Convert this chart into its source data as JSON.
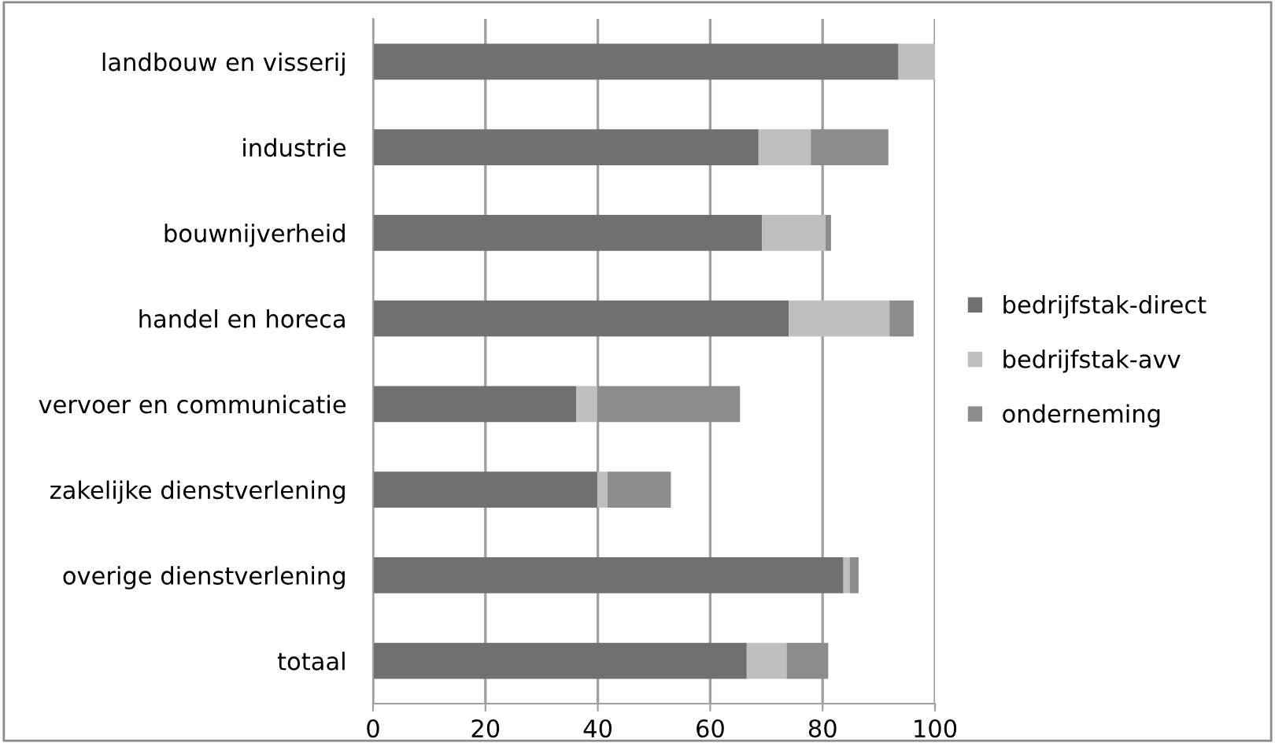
{
  "chart_data": {
    "type": "bar",
    "orientation": "horizontal",
    "stacked": true,
    "categories": [
      "landbouw en visserij",
      "industrie",
      "bouwnijverheid",
      "handel en horeca",
      "vervoer en communicatie",
      "zakelijke dienstverlening",
      "overige dienstverlening",
      "totaal"
    ],
    "series": [
      {
        "name": "bedrijfstak-direct",
        "color": "#707070",
        "values": [
          93.5,
          68.6,
          69.2,
          74.0,
          36.2,
          39.9,
          83.7,
          66.5
        ]
      },
      {
        "name": "bedrijfstak-avv",
        "color": "#bfbfbf",
        "values": [
          6.5,
          9.3,
          11.3,
          17.9,
          3.7,
          1.8,
          1.1,
          7.1
        ]
      },
      {
        "name": "onderneming",
        "color": "#8c8c8c",
        "values": [
          0,
          13.8,
          1.0,
          4.3,
          25.4,
          11.3,
          1.6,
          7.4
        ]
      }
    ],
    "xlim": [
      0,
      100
    ],
    "xticks": [
      0,
      20,
      40,
      60,
      80,
      100
    ],
    "grid": "x",
    "legend": "right"
  }
}
